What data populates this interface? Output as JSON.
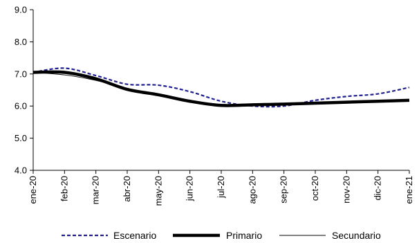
{
  "chart_data": {
    "type": "line",
    "title": "",
    "xlabel": "",
    "ylabel": "",
    "categories": [
      "ene-20",
      "feb-20",
      "mar-20",
      "abr-20",
      "may-20",
      "jun-20",
      "jul-20",
      "ago-20",
      "sep-20",
      "oct-20",
      "nov-20",
      "dic-20",
      "ene-21"
    ],
    "ylim": [
      4.0,
      9.0
    ],
    "yticks": [
      "4.0",
      "5.0",
      "6.0",
      "7.0",
      "8.0",
      "9.0"
    ],
    "grid": false,
    "legend_position": "bottom",
    "series": [
      {
        "name": "Escenario",
        "style": "dashed",
        "color": "#1f1f8f",
        "values": [
          7.05,
          7.18,
          6.95,
          6.68,
          6.65,
          6.45,
          6.15,
          6.0,
          6.0,
          6.18,
          6.3,
          6.38,
          6.58
        ]
      },
      {
        "name": "Primario",
        "style": "thick",
        "color": "#000000",
        "values": [
          7.05,
          7.05,
          6.85,
          6.52,
          6.35,
          6.15,
          6.02,
          6.04,
          6.06,
          6.09,
          6.12,
          6.15,
          6.18
        ]
      },
      {
        "name": "Secundario",
        "style": "thin",
        "color": "#000000",
        "values": [
          7.05,
          6.97,
          6.8,
          6.55,
          6.37,
          6.17,
          6.02,
          6.04,
          6.07,
          6.1,
          6.12,
          6.15,
          6.18
        ]
      }
    ]
  }
}
